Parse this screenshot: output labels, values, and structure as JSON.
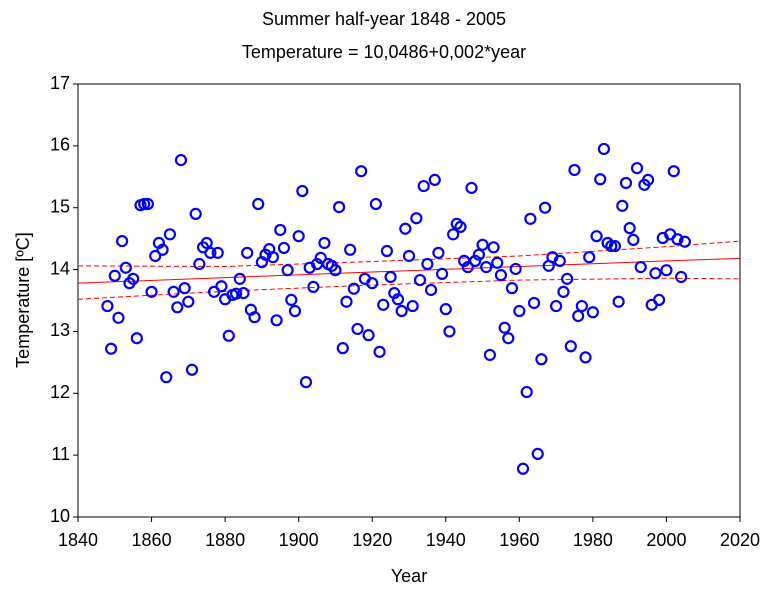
{
  "chart_data": {
    "type": "scatter",
    "title": "Summer half-year 1848 - 2005",
    "subtitle": "Temperature = 10,0486+0,002*year",
    "x_label": "Year",
    "y_label": "Temperature [ºC]",
    "xlim": [
      1840,
      2020
    ],
    "xticks": [
      1840,
      1860,
      1880,
      1900,
      1920,
      1940,
      1960,
      1980,
      2000,
      2020
    ],
    "ylim": [
      10,
      17
    ],
    "yticks": [
      10,
      11,
      12,
      13,
      14,
      15,
      16,
      17
    ],
    "grid": false,
    "color": "#0000ff",
    "x": [
      1848,
      1849,
      1850,
      1851,
      1852,
      1853,
      1854,
      1855,
      1856,
      1857,
      1858,
      1859,
      1860,
      1861,
      1862,
      1863,
      1864,
      1865,
      1866,
      1867,
      1868,
      1869,
      1870,
      1871,
      1872,
      1873,
      1874,
      1875,
      1876,
      1877,
      1878,
      1879,
      1880,
      1881,
      1882,
      1883,
      1884,
      1885,
      1886,
      1887,
      1888,
      1889,
      1890,
      1891,
      1892,
      1893,
      1894,
      1895,
      1896,
      1897,
      1898,
      1899,
      1900,
      1901,
      1902,
      1903,
      1904,
      1905,
      1906,
      1907,
      1908,
      1909,
      1910,
      1911,
      1912,
      1913,
      1914,
      1915,
      1916,
      1917,
      1918,
      1919,
      1920,
      1921,
      1922,
      1923,
      1924,
      1925,
      1926,
      1927,
      1928,
      1929,
      1930,
      1931,
      1932,
      1933,
      1934,
      1935,
      1936,
      1937,
      1938,
      1939,
      1940,
      1941,
      1942,
      1943,
      1944,
      1945,
      1946,
      1947,
      1948,
      1949,
      1950,
      1951,
      1952,
      1953,
      1954,
      1955,
      1956,
      1957,
      1958,
      1959,
      1960,
      1961,
      1962,
      1963,
      1964,
      1965,
      1966,
      1967,
      1968,
      1969,
      1970,
      1971,
      1972,
      1973,
      1974,
      1975,
      1976,
      1977,
      1978,
      1979,
      1980,
      1981,
      1982,
      1983,
      1984,
      1985,
      1986,
      1987,
      1988,
      1989,
      1990,
      1991,
      1992,
      1993,
      1994,
      1995,
      1996,
      1997,
      1998,
      1999,
      2000,
      2001,
      2002,
      2003,
      2004,
      2005
    ],
    "values": [
      13.41,
      12.72,
      13.9,
      13.22,
      14.46,
      14.03,
      13.78,
      13.85,
      12.89,
      15.04,
      15.06,
      15.06,
      13.64,
      14.22,
      14.43,
      14.32,
      12.26,
      14.57,
      13.64,
      13.39,
      15.77,
      13.7,
      13.48,
      12.38,
      14.9,
      14.09,
      14.36,
      14.43,
      14.27,
      13.64,
      14.27,
      13.73,
      13.52,
      12.93,
      13.59,
      13.61,
      13.85,
      13.62,
      14.27,
      13.35,
      13.23,
      15.06,
      14.12,
      14.24,
      14.33,
      14.2,
      13.18,
      14.64,
      14.35,
      13.99,
      13.51,
      13.33,
      14.54,
      15.27,
      12.18,
      14.03,
      13.72,
      14.09,
      14.19,
      14.43,
      14.09,
      14.06,
      13.99,
      15.01,
      12.73,
      13.48,
      14.32,
      13.69,
      13.04,
      15.59,
      13.85,
      12.94,
      13.78,
      15.06,
      12.67,
      13.43,
      14.3,
      13.88,
      13.62,
      13.52,
      13.33,
      14.66,
      14.22,
      13.41,
      14.83,
      13.83,
      15.35,
      14.09,
      13.67,
      15.45,
      14.27,
      13.93,
      13.36,
      13.0,
      14.57,
      14.74,
      14.69,
      14.14,
      14.04,
      15.32,
      14.14,
      14.24,
      14.4,
      14.04,
      12.62,
      14.36,
      14.11,
      13.91,
      13.06,
      12.89,
      13.7,
      14.01,
      13.33,
      10.78,
      12.02,
      14.82,
      13.46,
      11.02,
      12.55,
      15.0,
      14.06,
      14.2,
      13.41,
      14.14,
      13.64,
      13.85,
      12.76,
      15.61,
      13.25,
      13.41,
      12.58,
      14.2,
      13.31,
      14.54,
      15.46,
      15.95,
      14.43,
      14.38,
      14.38,
      13.48,
      15.03,
      15.4,
      14.67,
      14.48,
      15.64,
      14.04,
      15.37,
      15.45,
      13.43,
      13.94,
      13.51,
      14.51,
      13.99,
      14.57,
      15.59,
      14.49,
      13.88,
      14.45
    ],
    "fit": {
      "color": "#ff0000",
      "x": [
        1840,
        1880,
        1920,
        1960,
        2000,
        2020
      ],
      "values": [
        13.78,
        13.87,
        13.96,
        14.05,
        14.14,
        14.18
      ],
      "upper": [
        14.06,
        14.05,
        14.13,
        14.22,
        14.37,
        14.46
      ],
      "lower": [
        13.52,
        13.65,
        13.75,
        13.83,
        13.86,
        13.85
      ]
    }
  }
}
